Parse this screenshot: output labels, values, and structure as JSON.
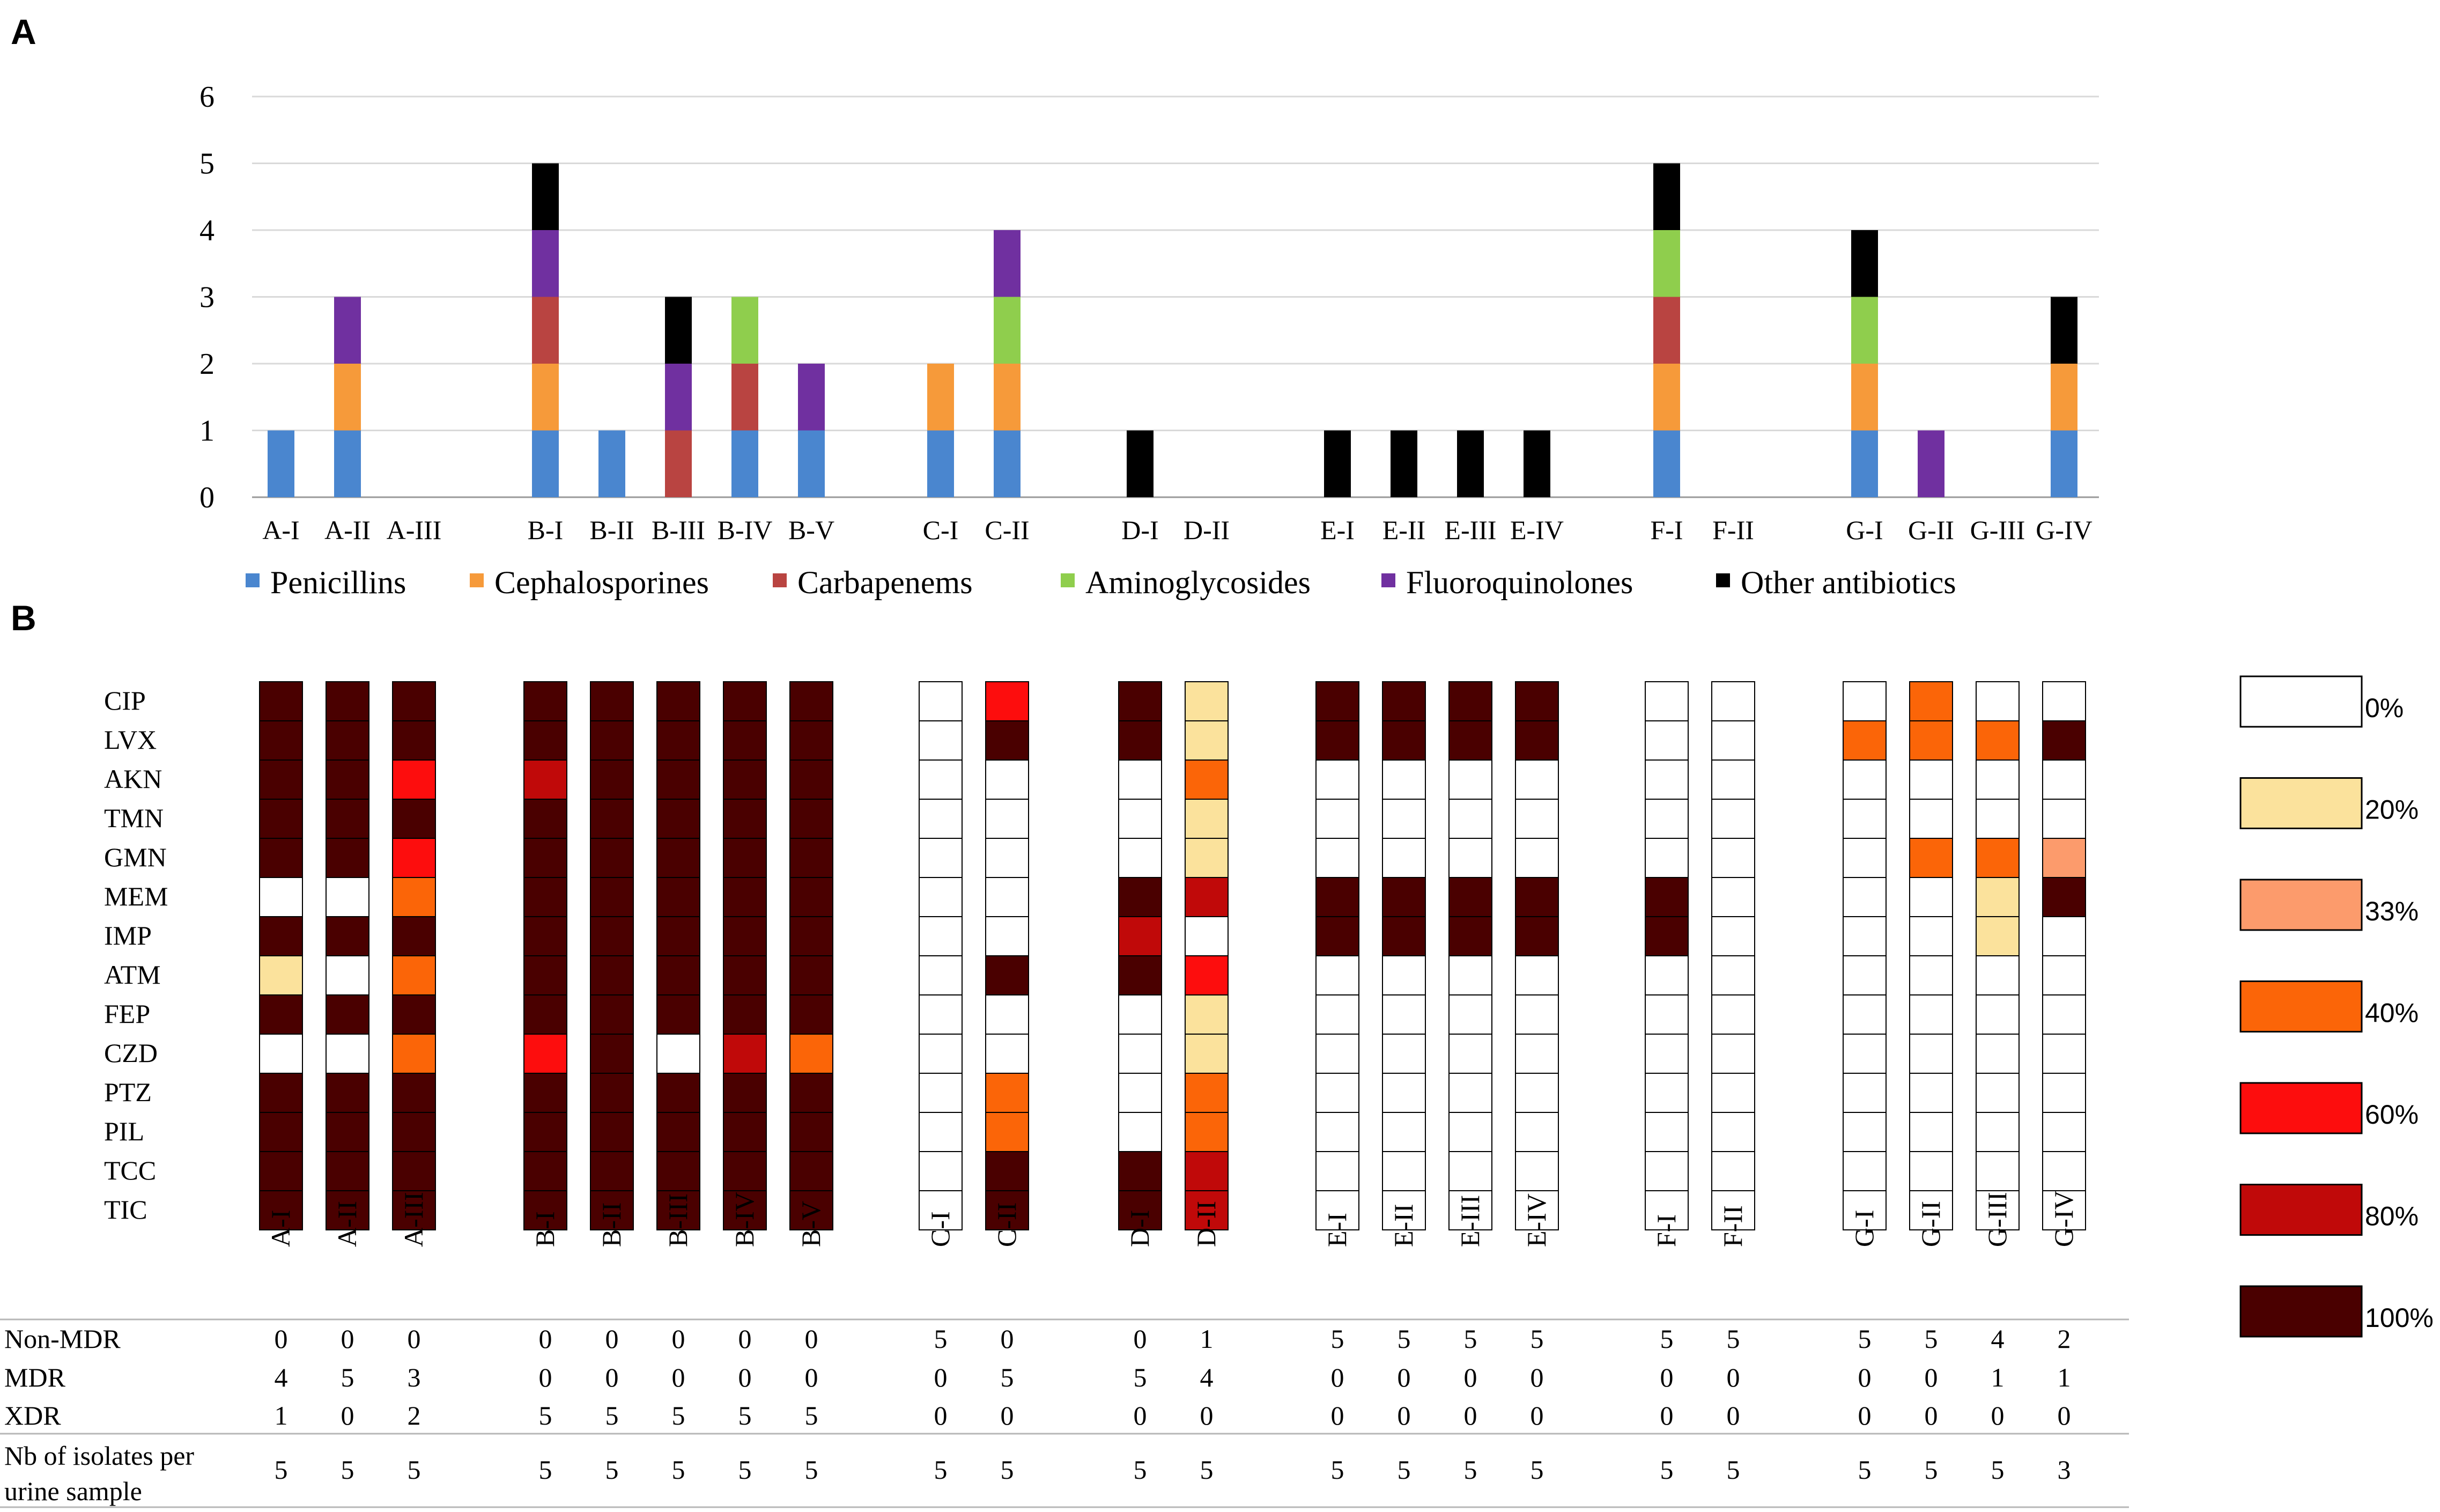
{
  "panel_a_label": "A",
  "panel_b_label": "B",
  "chart_data": [
    {
      "type": "bar",
      "stacked": true,
      "title": "",
      "xlabel": "",
      "ylabel": "",
      "ylim": [
        0,
        6
      ],
      "yticks": [
        "0",
        "1",
        "2",
        "3",
        "4",
        "5",
        "6"
      ],
      "legend_position": "bottom",
      "categories": [
        "A-I",
        "A-II",
        "A-III",
        "B-I",
        "B-II",
        "B-III",
        "B-IV",
        "B-V",
        "C-I",
        "C-II",
        "D-I",
        "D-II",
        "E-I",
        "E-II",
        "E-III",
        "E-IV",
        "F-I",
        "F-II",
        "G-I",
        "G-II",
        "G-III",
        "G-IV"
      ],
      "groups": [
        [
          0,
          1,
          2
        ],
        [
          3,
          4,
          5,
          6,
          7
        ],
        [
          8,
          9
        ],
        [
          10,
          11
        ],
        [
          12,
          13,
          14,
          15
        ],
        [
          16,
          17
        ],
        [
          18,
          19,
          20,
          21
        ]
      ],
      "series": [
        {
          "name": "Penicillins",
          "color": "#4a86cf",
          "values": [
            1,
            1,
            0,
            1,
            1,
            0,
            1,
            1,
            1,
            1,
            0,
            0,
            0,
            0,
            0,
            0,
            1,
            0,
            1,
            0,
            0,
            1
          ]
        },
        {
          "name": "Cephalosporines",
          "color": "#f69a3a",
          "values": [
            0,
            1,
            0,
            1,
            0,
            0,
            0,
            0,
            1,
            1,
            0,
            0,
            0,
            0,
            0,
            0,
            1,
            0,
            1,
            0,
            0,
            1
          ]
        },
        {
          "name": "Carbapenems",
          "color": "#b94441",
          "values": [
            0,
            0,
            0,
            1,
            0,
            1,
            1,
            0,
            0,
            0,
            0,
            0,
            0,
            0,
            0,
            0,
            1,
            0,
            0,
            0,
            0,
            0
          ]
        },
        {
          "name": "Aminoglycosides",
          "color": "#8fce4d",
          "values": [
            0,
            0,
            0,
            0,
            0,
            0,
            1,
            0,
            0,
            1,
            0,
            0,
            0,
            0,
            0,
            0,
            1,
            0,
            1,
            0,
            0,
            0
          ]
        },
        {
          "name": "Fluoroquinolones",
          "color": "#7030a0",
          "values": [
            0,
            1,
            0,
            1,
            0,
            1,
            0,
            1,
            0,
            1,
            0,
            0,
            0,
            0,
            0,
            0,
            0,
            0,
            0,
            1,
            0,
            0
          ]
        },
        {
          "name": "Other antibiotics",
          "color": "#000000",
          "values": [
            0,
            0,
            0,
            1,
            0,
            1,
            0,
            0,
            0,
            0,
            1,
            0,
            1,
            1,
            1,
            1,
            1,
            0,
            1,
            0,
            0,
            1
          ]
        }
      ]
    },
    {
      "type": "heatmap",
      "title": "",
      "rows": [
        "CIP",
        "LVX",
        "AKN",
        "TMN",
        "GMN",
        "MEM",
        "IMP",
        "ATM",
        "FEP",
        "CZD",
        "PTZ",
        "PIL",
        "TCC",
        "TIC"
      ],
      "columns": [
        "A-I",
        "A-II",
        "A-III",
        "B-I",
        "B-II",
        "B-III",
        "B-IV",
        "B-V",
        "C-I",
        "C-II",
        "D-I",
        "D-II",
        "E-I",
        "E-II",
        "E-III",
        "E-IV",
        "F-I",
        "F-II",
        "G-I",
        "G-II",
        "G-III",
        "G-IV"
      ],
      "groups": [
        [
          0,
          1,
          2
        ],
        [
          3,
          4,
          5,
          6,
          7
        ],
        [
          8,
          9
        ],
        [
          10,
          11
        ],
        [
          12,
          13,
          14,
          15
        ],
        [
          16,
          17
        ],
        [
          18,
          19,
          20,
          21
        ]
      ],
      "value_unit": "% resistant isolates",
      "legend": [
        {
          "label": "0%",
          "value": 0,
          "color": "#ffffff"
        },
        {
          "label": "20%",
          "value": 20,
          "color": "#fbe29c"
        },
        {
          "label": "33%",
          "value": 33,
          "color": "#fc9b6c"
        },
        {
          "label": "40%",
          "value": 40,
          "color": "#fb6508"
        },
        {
          "label": "60%",
          "value": 60,
          "color": "#fd0d0d"
        },
        {
          "label": "80%",
          "value": 80,
          "color": "#c00909"
        },
        {
          "label": "100%",
          "value": 100,
          "color": "#4a0000"
        }
      ],
      "values": [
        [
          100,
          100,
          100,
          100,
          100,
          100,
          100,
          100,
          0,
          60,
          100,
          20,
          100,
          100,
          100,
          100,
          0,
          0,
          0,
          40,
          0,
          0
        ],
        [
          100,
          100,
          100,
          100,
          100,
          100,
          100,
          100,
          0,
          100,
          100,
          20,
          100,
          100,
          100,
          100,
          0,
          0,
          40,
          40,
          40,
          100
        ],
        [
          100,
          100,
          60,
          80,
          100,
          100,
          100,
          100,
          0,
          0,
          0,
          40,
          0,
          0,
          0,
          0,
          0,
          0,
          0,
          0,
          0,
          0
        ],
        [
          100,
          100,
          100,
          100,
          100,
          100,
          100,
          100,
          0,
          0,
          0,
          20,
          0,
          0,
          0,
          0,
          0,
          0,
          0,
          0,
          0,
          0
        ],
        [
          100,
          100,
          60,
          100,
          100,
          100,
          100,
          100,
          0,
          0,
          0,
          20,
          0,
          0,
          0,
          0,
          0,
          0,
          0,
          40,
          40,
          33
        ],
        [
          0,
          0,
          40,
          100,
          100,
          100,
          100,
          100,
          0,
          0,
          100,
          80,
          100,
          100,
          100,
          100,
          100,
          0,
          0,
          0,
          20,
          100
        ],
        [
          100,
          100,
          100,
          100,
          100,
          100,
          100,
          100,
          0,
          0,
          80,
          0,
          100,
          100,
          100,
          100,
          100,
          0,
          0,
          0,
          20,
          0
        ],
        [
          20,
          0,
          40,
          100,
          100,
          100,
          100,
          100,
          0,
          100,
          100,
          60,
          0,
          0,
          0,
          0,
          0,
          0,
          0,
          0,
          0,
          0
        ],
        [
          100,
          100,
          100,
          100,
          100,
          100,
          100,
          100,
          0,
          0,
          0,
          20,
          0,
          0,
          0,
          0,
          0,
          0,
          0,
          0,
          0,
          0
        ],
        [
          0,
          0,
          40,
          60,
          100,
          0,
          80,
          40,
          0,
          0,
          0,
          20,
          0,
          0,
          0,
          0,
          0,
          0,
          0,
          0,
          0,
          0
        ],
        [
          100,
          100,
          100,
          100,
          100,
          100,
          100,
          100,
          0,
          40,
          0,
          40,
          0,
          0,
          0,
          0,
          0,
          0,
          0,
          0,
          0,
          0
        ],
        [
          100,
          100,
          100,
          100,
          100,
          100,
          100,
          100,
          0,
          40,
          0,
          40,
          0,
          0,
          0,
          0,
          0,
          0,
          0,
          0,
          0,
          0
        ],
        [
          100,
          100,
          100,
          100,
          100,
          100,
          100,
          100,
          0,
          100,
          100,
          80,
          0,
          0,
          0,
          0,
          0,
          0,
          0,
          0,
          0,
          0
        ],
        [
          100,
          100,
          100,
          100,
          100,
          100,
          100,
          100,
          0,
          100,
          100,
          80,
          0,
          0,
          0,
          0,
          0,
          0,
          0,
          0,
          0,
          0
        ]
      ]
    },
    {
      "type": "table",
      "title": "",
      "row_labels": [
        "Non-MDR",
        "MDR",
        "XDR",
        "Nb of isolates per urine sample"
      ],
      "row_label_lines": [
        [
          "Non-MDR"
        ],
        [
          "MDR"
        ],
        [
          "XDR"
        ],
        [
          "Nb of isolates per",
          "urine sample"
        ]
      ],
      "columns": [
        "A-I",
        "A-II",
        "A-III",
        "B-I",
        "B-II",
        "B-III",
        "B-IV",
        "B-V",
        "C-I",
        "C-II",
        "D-I",
        "D-II",
        "E-I",
        "E-II",
        "E-III",
        "E-IV",
        "F-I",
        "F-II",
        "G-I",
        "G-II",
        "G-III",
        "G-IV"
      ],
      "rows": [
        [
          "0",
          "0",
          "0",
          "0",
          "0",
          "0",
          "0",
          "0",
          "5",
          "0",
          "0",
          "1",
          "5",
          "5",
          "5",
          "5",
          "5",
          "5",
          "5",
          "5",
          "4",
          "2"
        ],
        [
          "4",
          "5",
          "3",
          "0",
          "0",
          "0",
          "0",
          "0",
          "0",
          "5",
          "5",
          "4",
          "0",
          "0",
          "0",
          "0",
          "0",
          "0",
          "0",
          "0",
          "1",
          "1"
        ],
        [
          "1",
          "0",
          "2",
          "5",
          "5",
          "5",
          "5",
          "5",
          "0",
          "0",
          "0",
          "0",
          "0",
          "0",
          "0",
          "0",
          "0",
          "0",
          "0",
          "0",
          "0",
          "0"
        ],
        [
          "5",
          "5",
          "5",
          "5",
          "5",
          "5",
          "5",
          "5",
          "5",
          "5",
          "5",
          "5",
          "5",
          "5",
          "5",
          "5",
          "5",
          "5",
          "5",
          "5",
          "5",
          "3"
        ]
      ]
    }
  ]
}
